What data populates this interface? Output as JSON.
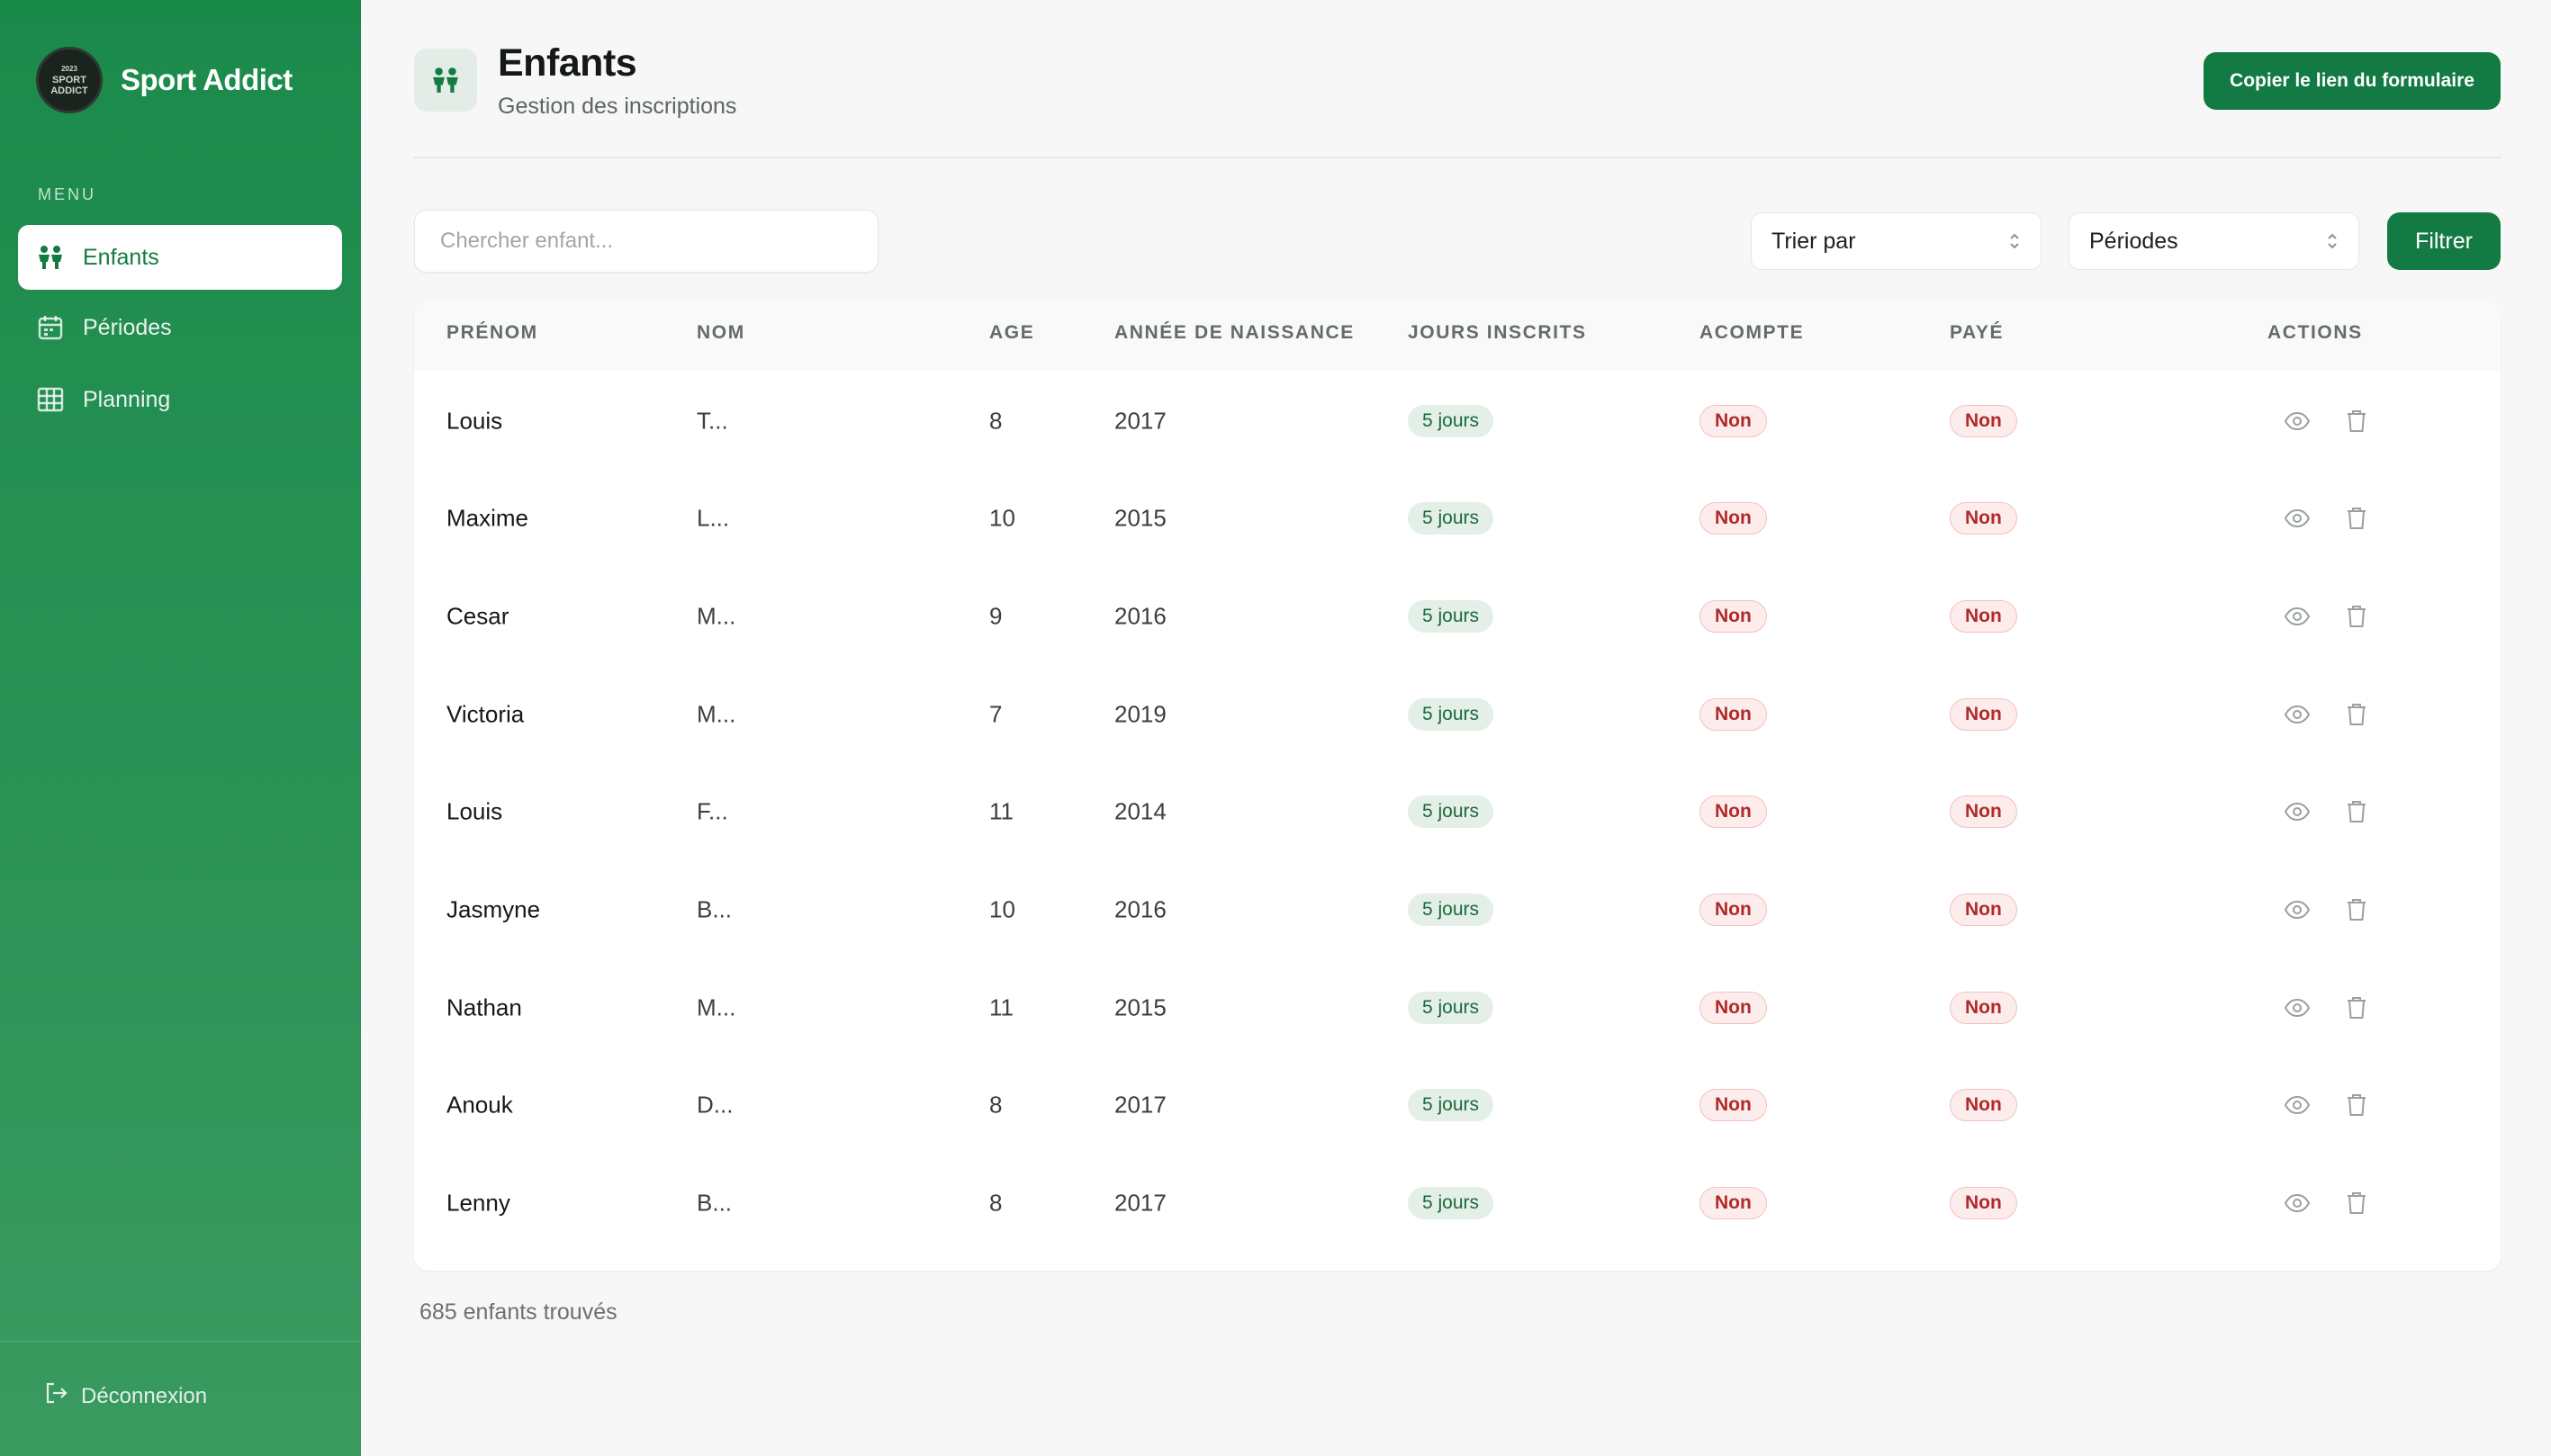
{
  "brand": {
    "name": "Sport Addict",
    "logo_text_1": "2023",
    "logo_text_2": "SPORT",
    "logo_text_3": "ADDICT"
  },
  "sidebar": {
    "menu_label": "MENU",
    "items": [
      {
        "label": "Enfants",
        "icon": "children-icon",
        "active": true
      },
      {
        "label": "Périodes",
        "icon": "calendar-icon",
        "active": false
      },
      {
        "label": "Planning",
        "icon": "grid-icon",
        "active": false
      }
    ],
    "logout_label": "Déconnexion"
  },
  "header": {
    "title": "Enfants",
    "subtitle": "Gestion des inscriptions",
    "copy_button": "Copier le lien du formulaire"
  },
  "toolbar": {
    "search_placeholder": "Chercher enfant...",
    "sort_label": "Trier par",
    "period_label": "Périodes",
    "filter_button": "Filtrer"
  },
  "table": {
    "columns": [
      "PRÉNOM",
      "NOM",
      "AGE",
      "ANNÉE DE NAISSANCE",
      "JOURS INSCRITS",
      "ACOMPTE",
      "PAYÉ",
      "ACTIONS"
    ],
    "rows": [
      {
        "prenom": "Louis",
        "nom": "T...",
        "age": "8",
        "annee": "2017",
        "jours": "5 jours",
        "acompte": "Non",
        "paye": "Non"
      },
      {
        "prenom": "Maxime",
        "nom": "L...",
        "age": "10",
        "annee": "2015",
        "jours": "5 jours",
        "acompte": "Non",
        "paye": "Non"
      },
      {
        "prenom": "Cesar",
        "nom": "M...",
        "age": "9",
        "annee": "2016",
        "jours": "5 jours",
        "acompte": "Non",
        "paye": "Non"
      },
      {
        "prenom": "Victoria",
        "nom": "M...",
        "age": "7",
        "annee": "2019",
        "jours": "5 jours",
        "acompte": "Non",
        "paye": "Non"
      },
      {
        "prenom": "Louis",
        "nom": "F...",
        "age": "11",
        "annee": "2014",
        "jours": "5 jours",
        "acompte": "Non",
        "paye": "Non"
      },
      {
        "prenom": "Jasmyne",
        "nom": "B...",
        "age": "10",
        "annee": "2016",
        "jours": "5 jours",
        "acompte": "Non",
        "paye": "Non"
      },
      {
        "prenom": "Nathan",
        "nom": "M...",
        "age": "11",
        "annee": "2015",
        "jours": "5 jours",
        "acompte": "Non",
        "paye": "Non"
      },
      {
        "prenom": "Anouk",
        "nom": "D...",
        "age": "8",
        "annee": "2017",
        "jours": "5 jours",
        "acompte": "Non",
        "paye": "Non"
      },
      {
        "prenom": "Lenny",
        "nom": "B...",
        "age": "8",
        "annee": "2017",
        "jours": "5 jours",
        "acompte": "Non",
        "paye": "Non"
      }
    ],
    "row_actions": [
      "view-icon",
      "trash-icon"
    ]
  },
  "footer": {
    "count_text": "685 enfants trouvés"
  },
  "colors": {
    "primary": "#137a43",
    "sidebar_top": "#1a8a4b",
    "sidebar_bottom": "#3a9a60",
    "danger": "#b02a2a"
  }
}
